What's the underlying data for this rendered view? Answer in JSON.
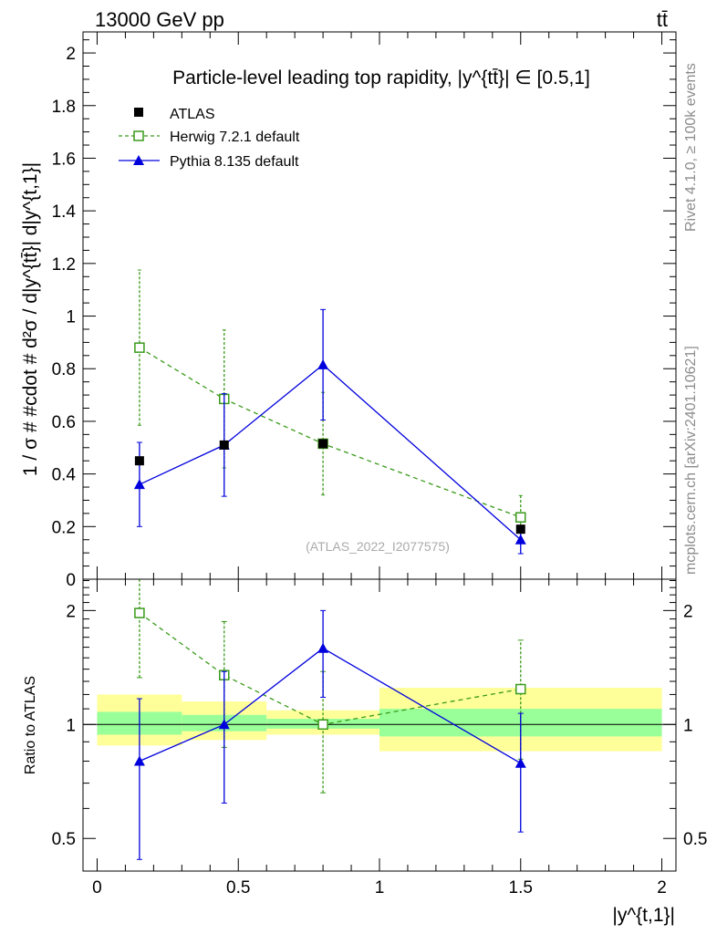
{
  "header": {
    "left": "13000 GeV pp",
    "right": "tt̄"
  },
  "side_text": {
    "rivet": "Rivet 4.1.0, ≥ 100k events",
    "mcplots": "mcplots.cern.ch [arXiv:2401.10621]"
  },
  "colors": {
    "atlas": "#000000",
    "herwig": "#3a9a1a",
    "pythia": "#0000dd",
    "band_outer": "#ffff99",
    "band_inner": "#99ff99",
    "watermark": "#aaaaaa"
  },
  "chart_data": [
    {
      "type": "scatter",
      "panel": "main",
      "title": "Particle-level leading top rapidity, |y^{tt̄}| ∈ [0.5,1]",
      "ylabel": "1 / σ # #cdot # d²σ / d|y^{tt̄}| d|y^{t,1}|",
      "xlabel": "",
      "xlim": [
        -0.05,
        2.05
      ],
      "ylim": [
        0,
        2.08
      ],
      "yticks": [
        0,
        0.2,
        0.4,
        0.6,
        0.8,
        1,
        1.2,
        1.4,
        1.6,
        1.8,
        2
      ],
      "ytick_labels": [
        "0",
        "0.2",
        "0.4",
        "0.6",
        "0.8",
        "1",
        "1.2",
        "1.4",
        "1.6",
        "1.8",
        "2"
      ],
      "watermark": "(ATLAS_2022_I2077575)",
      "legend": [
        "ATLAS",
        "Herwig 7.2.1 default",
        "Pythia 8.135 default"
      ],
      "legend_position": "top-left",
      "series": [
        {
          "name": "ATLAS",
          "x": [
            0.15,
            0.45,
            0.8,
            1.5
          ],
          "y": [
            0.45,
            0.51,
            0.515,
            0.19
          ],
          "yerr": [
            0,
            0,
            0,
            0
          ]
        },
        {
          "name": "Herwig 7.2.1 default",
          "x": [
            0.15,
            0.45,
            0.8,
            1.5
          ],
          "y": [
            0.88,
            0.685,
            0.515,
            0.235
          ],
          "yerr": [
            0.295,
            0.262,
            0.195,
            0.083
          ]
        },
        {
          "name": "Pythia 8.135 default",
          "x": [
            0.15,
            0.45,
            0.8,
            1.5
          ],
          "y": [
            0.36,
            0.51,
            0.815,
            0.15
          ],
          "yerr": [
            0.16,
            0.195,
            0.21,
            0.053
          ]
        }
      ]
    },
    {
      "type": "scatter",
      "panel": "ratio",
      "ylabel": "Ratio to ATLAS",
      "xlabel": "|y^{t,1}|",
      "xlim": [
        -0.05,
        2.05
      ],
      "ylim": [
        0.41,
        2.42
      ],
      "yscale": "log",
      "yticks": [
        0.5,
        1,
        2
      ],
      "ytick_labels": [
        "0.5",
        "1",
        "2"
      ],
      "xticks": [
        0,
        0.5,
        1,
        1.5,
        2
      ],
      "xtick_labels": [
        "0",
        "0.5",
        "1",
        "1.5",
        "2"
      ],
      "bands": [
        {
          "x0": 0.0,
          "x1": 0.3,
          "inner": [
            0.94,
            1.08
          ],
          "outer": [
            0.88,
            1.2
          ]
        },
        {
          "x0": 0.3,
          "x1": 0.6,
          "inner": [
            0.96,
            1.06
          ],
          "outer": [
            0.91,
            1.15
          ]
        },
        {
          "x0": 0.6,
          "x1": 1.0,
          "inner": [
            0.975,
            1.035
          ],
          "outer": [
            0.94,
            1.09
          ]
        },
        {
          "x0": 1.0,
          "x1": 2.0,
          "inner": [
            0.93,
            1.1
          ],
          "outer": [
            0.85,
            1.25
          ]
        }
      ],
      "series": [
        {
          "name": "Herwig 7.2.1 default",
          "x": [
            0.15,
            0.45,
            0.8,
            1.5
          ],
          "y": [
            1.97,
            1.35,
            1.0,
            1.24
          ],
          "ylo": [
            1.33,
            0.87,
            0.66,
            0.81
          ],
          "yhi": [
            2.58,
            1.87,
            1.38,
            1.67
          ]
        },
        {
          "name": "Pythia 8.135 default",
          "x": [
            0.15,
            0.45,
            0.8,
            1.5
          ],
          "y": [
            0.8,
            1.0,
            1.59,
            0.79
          ],
          "ylo": [
            0.44,
            0.62,
            1.18,
            0.52
          ],
          "yhi": [
            1.17,
            1.38,
            2.0,
            1.07
          ]
        }
      ]
    }
  ]
}
